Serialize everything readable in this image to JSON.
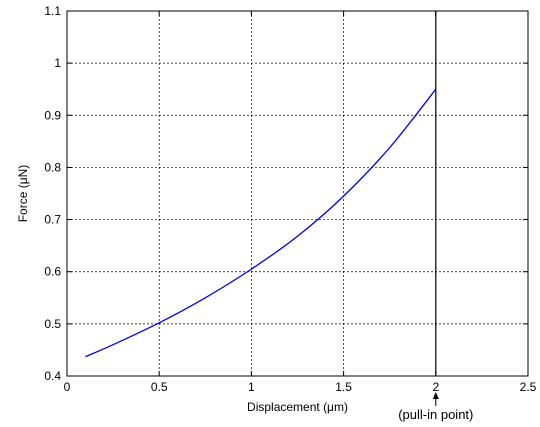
{
  "chart_data": {
    "type": "line",
    "xlabel": "Displacement (μm)",
    "ylabel": "Force (μN)",
    "xlim": [
      0,
      2.5
    ],
    "ylim": [
      0.4,
      1.1
    ],
    "xticks": [
      0,
      0.5,
      1,
      1.5,
      2,
      2.5
    ],
    "yticks": [
      0.4,
      0.5,
      0.6,
      0.7,
      0.8,
      0.9,
      1,
      1.1
    ],
    "xtick_labels": [
      "0",
      "0.5",
      "1",
      "1.5",
      "2",
      "2.5"
    ],
    "ytick_labels": [
      "0.4",
      "0.5",
      "0.6",
      "0.7",
      "0.8",
      "0.9",
      "1",
      "1.1"
    ],
    "grid": true,
    "series": [
      {
        "color": "#0000ee",
        "x": [
          0.1,
          0.25,
          0.5,
          0.75,
          1.0,
          1.25,
          1.5,
          1.75,
          2.0
        ],
        "y": [
          0.437,
          0.46,
          0.502,
          0.55,
          0.605,
          0.668,
          0.745,
          0.838,
          0.95
        ]
      }
    ],
    "annotations": [
      {
        "text": "(pull-in point)",
        "x": 2.0,
        "arrow": true
      }
    ],
    "vline": 2.0
  }
}
